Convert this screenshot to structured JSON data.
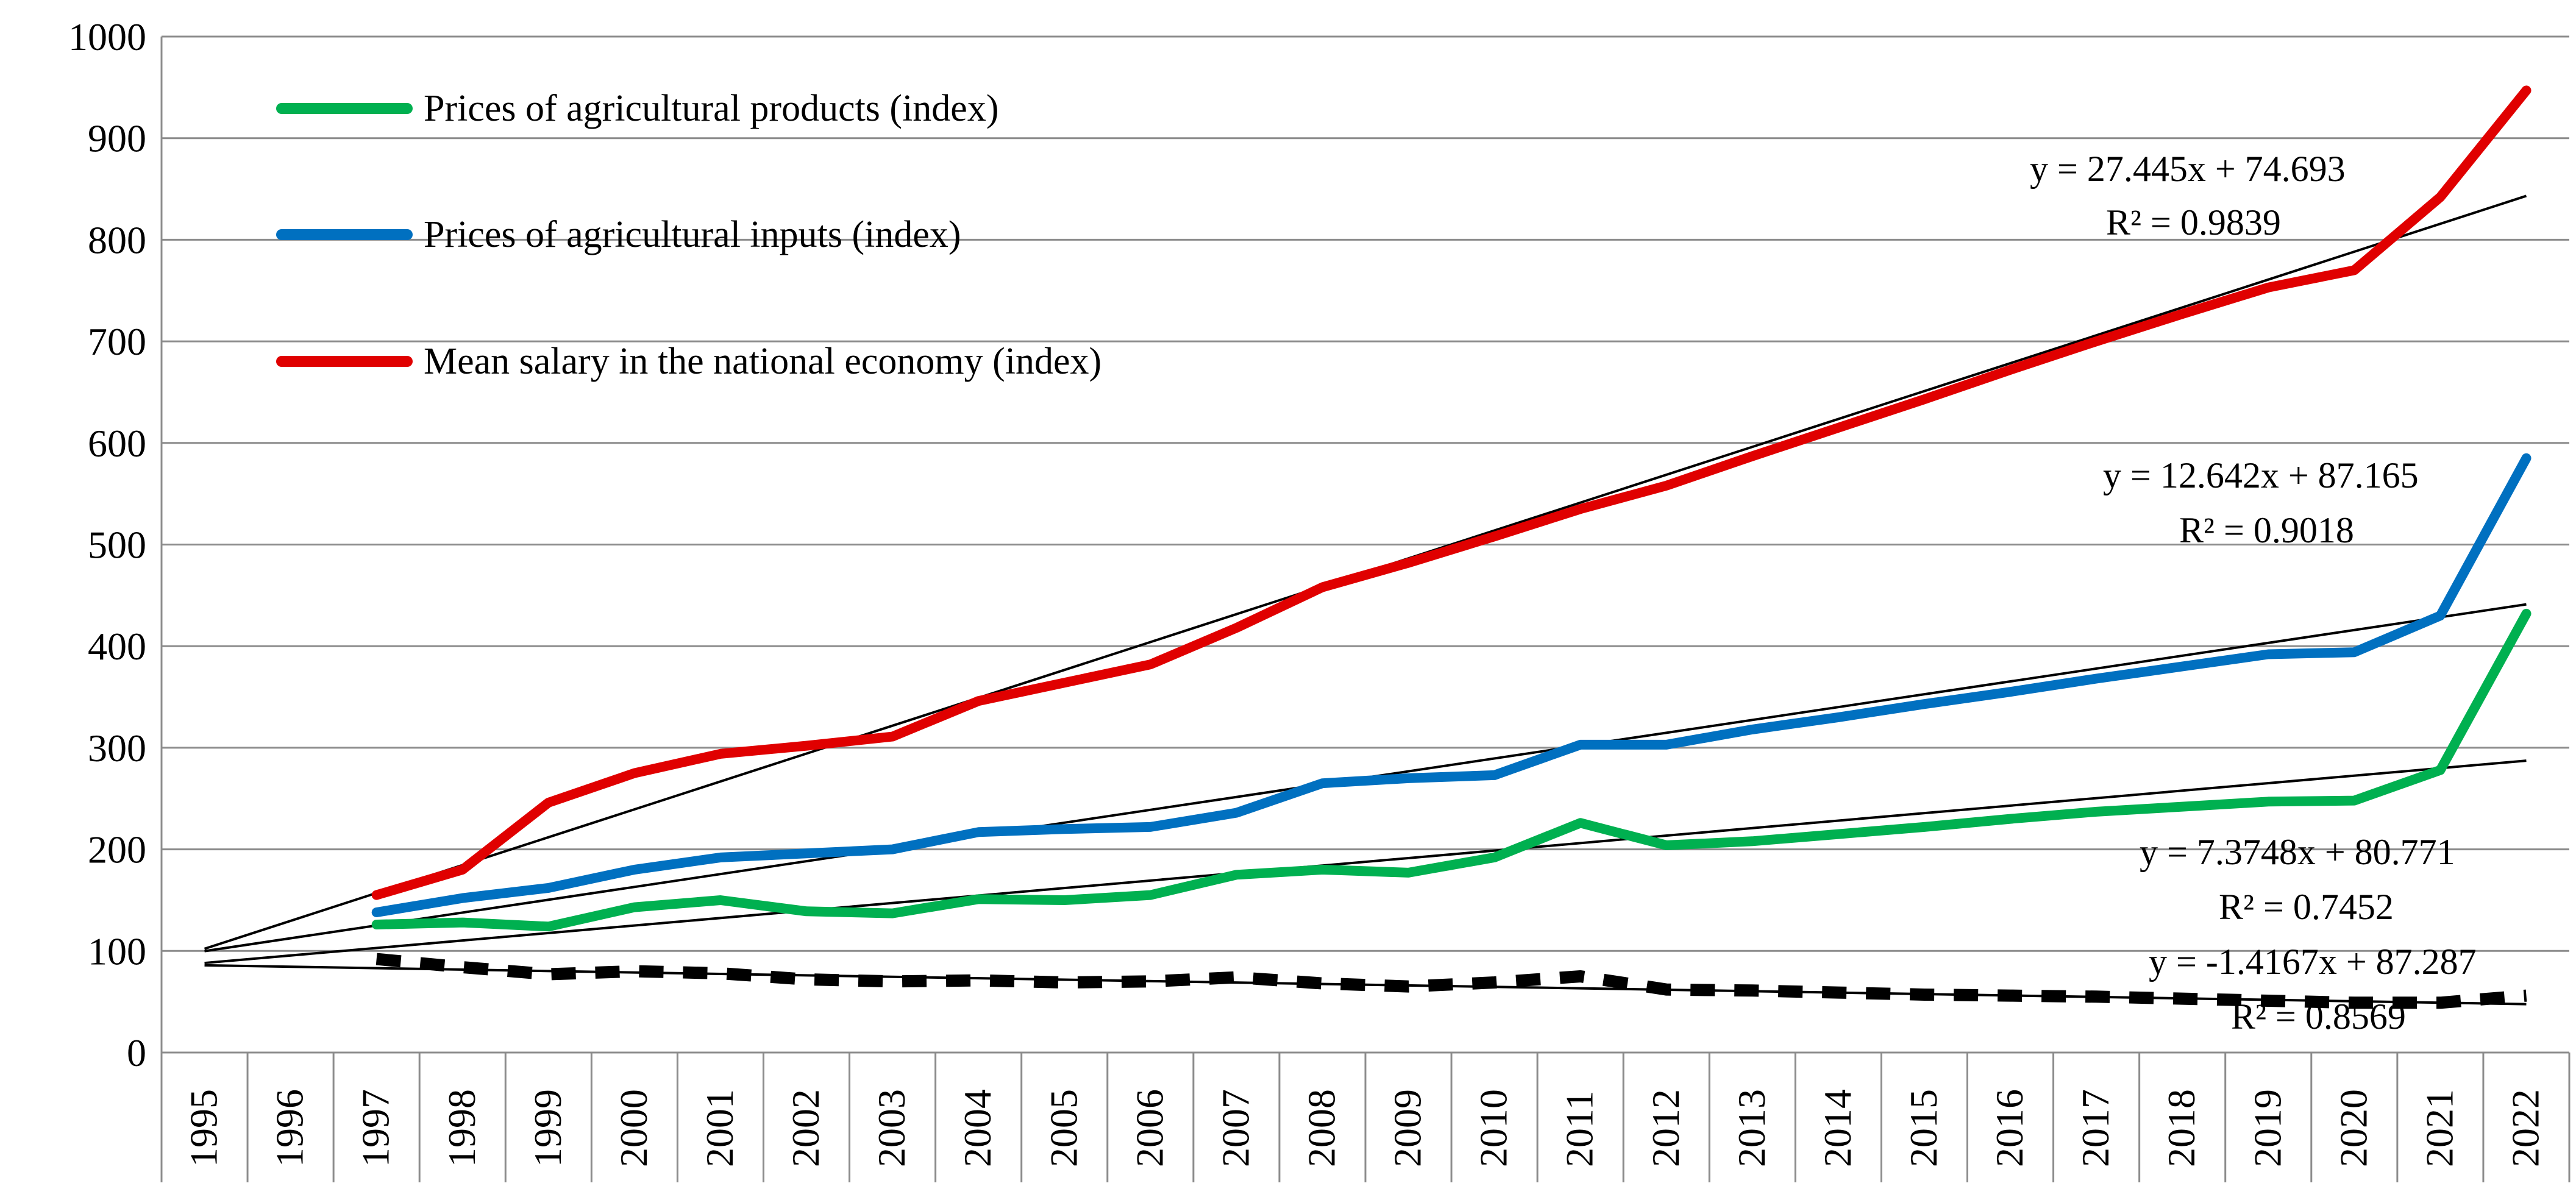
{
  "chart_data": {
    "type": "line",
    "title": "",
    "xlabel": "",
    "ylabel": "",
    "categories": [
      "1995",
      "1996",
      "1997",
      "1998",
      "1999",
      "2000",
      "2001",
      "2002",
      "2003",
      "2004",
      "2005",
      "2006",
      "2007",
      "2008",
      "2009",
      "2010",
      "2011",
      "2012",
      "2013",
      "2014",
      "2015",
      "2016",
      "2017",
      "2018",
      "2019",
      "2020",
      "2021",
      "2022"
    ],
    "ylim": [
      0,
      1000
    ],
    "yticks": [
      "0",
      "100",
      "200",
      "300",
      "400",
      "500",
      "600",
      "700",
      "800",
      "900",
      "1000"
    ],
    "grid": "horizontal",
    "legend_position": "top-left",
    "series": [
      {
        "name": "Prices of agricultural products (index)",
        "color": "#00b050",
        "values": [
          null,
          null,
          126,
          128,
          124,
          143,
          150,
          139,
          137,
          151,
          150,
          155,
          175,
          180,
          177,
          192,
          226,
          204,
          208,
          215,
          222,
          230,
          237,
          242,
          247,
          248,
          278,
          432
        ]
      },
      {
        "name": "Prices of agricultural inputs (index)",
        "color": "#0070c0",
        "values": [
          null,
          null,
          138,
          152,
          162,
          180,
          192,
          196,
          200,
          217,
          220,
          222,
          236,
          265,
          270,
          273,
          303,
          303,
          318,
          330,
          343,
          355,
          368,
          380,
          392,
          394,
          430,
          585
        ]
      },
      {
        "name": "Mean salary in the national economy (index)",
        "color": "#e00000",
        "values": [
          null,
          null,
          155,
          180,
          246,
          275,
          294,
          302,
          311,
          346,
          364,
          382,
          418,
          458,
          482,
          508,
          535,
          558,
          587,
          615,
          643,
          672,
          700,
          727,
          753,
          770,
          842,
          947
        ]
      },
      {
        "name": "",
        "color": "#000000",
        "dashed": true,
        "values": [
          null,
          null,
          92,
          84,
          77,
          80,
          78,
          72,
          70,
          71,
          69,
          70,
          74,
          68,
          65,
          69,
          75,
          62,
          61,
          59,
          57,
          56,
          55,
          53,
          51,
          49,
          49,
          56
        ]
      }
    ],
    "trendlines": [
      {
        "series_index": 2,
        "slope": 27.445,
        "intercept": 74.693,
        "equation": "y = 27.445x + 74.693",
        "r2": "R² = 0.9839"
      },
      {
        "series_index": 1,
        "slope": 12.642,
        "intercept": 87.165,
        "equation": "y = 12.642x + 87.165",
        "r2": "R² = 0.9018"
      },
      {
        "series_index": 0,
        "slope": 7.3748,
        "intercept": 80.771,
        "equation": "y = 7.3748x + 80.771",
        "r2": "R² = 0.7452"
      },
      {
        "series_index": 3,
        "slope": -1.4167,
        "intercept": 87.287,
        "equation": "y = -1.4167x + 87.287",
        "r2": "R² = 0.8569"
      }
    ]
  }
}
